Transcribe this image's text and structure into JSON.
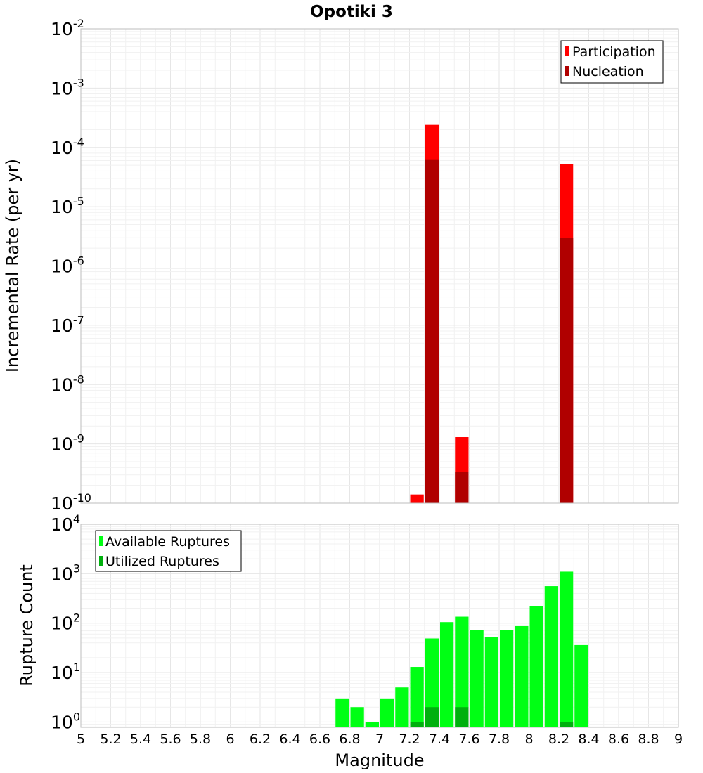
{
  "chart_data": [
    {
      "type": "bar",
      "title": "Opotiki 3",
      "xlabel": "",
      "ylabel": "Incremental Rate (per yr)",
      "xlim": [
        5,
        9
      ],
      "ylim": [
        1e-10,
        0.01
      ],
      "yscale": "log",
      "ytick_exponents": [
        -10,
        -9,
        -8,
        -7,
        -6,
        -5,
        -4,
        -3,
        -2
      ],
      "bin_width": 0.1,
      "grid": true,
      "legend_position": "top-right",
      "colors": {
        "Participation": "#ff0000",
        "Nucleation": "#b00000"
      },
      "series": [
        {
          "name": "Participation",
          "x": [
            7.25,
            7.35,
            7.55,
            8.25
          ],
          "values": [
            1.4e-10,
            0.00024,
            1.3e-09,
            5.2e-05
          ]
        },
        {
          "name": "Nucleation",
          "x": [
            7.35,
            7.55,
            8.25
          ],
          "values": [
            6.3e-05,
            3.4e-10,
            3e-06
          ]
        }
      ]
    },
    {
      "type": "bar",
      "title": "",
      "xlabel": "Magnitude",
      "ylabel": "Rupture Count",
      "xlim": [
        5,
        9
      ],
      "ylim": [
        0.78,
        10000.0
      ],
      "yscale": "log",
      "ytick_exponents": [
        0,
        1,
        2,
        3,
        4
      ],
      "xticks": [
        "5",
        "5.2",
        "5.4",
        "5.6",
        "5.8",
        "6",
        "6.2",
        "6.4",
        "6.6",
        "6.8",
        "7",
        "7.2",
        "7.4",
        "7.6",
        "7.8",
        "8",
        "8.2",
        "8.4",
        "8.6",
        "8.8",
        "9"
      ],
      "bin_width": 0.1,
      "grid": true,
      "legend_position": "top-left",
      "colors": {
        "Available Ruptures": "#00ff14",
        "Utilized Ruptures": "#00b00e"
      },
      "series": [
        {
          "name": "Available Ruptures",
          "x": [
            6.75,
            6.85,
            6.95,
            7.05,
            7.15,
            7.25,
            7.35,
            7.45,
            7.55,
            7.65,
            7.75,
            7.85,
            7.95,
            8.05,
            8.15,
            8.25,
            8.35
          ],
          "values": [
            3,
            2,
            1,
            3,
            5,
            13,
            49,
            105,
            135,
            73,
            52,
            73,
            87,
            220,
            560,
            1100,
            36
          ]
        },
        {
          "name": "Utilized Ruptures",
          "x": [
            7.25,
            7.35,
            7.55,
            8.25
          ],
          "values": [
            1,
            2,
            2,
            1
          ]
        }
      ]
    }
  ]
}
